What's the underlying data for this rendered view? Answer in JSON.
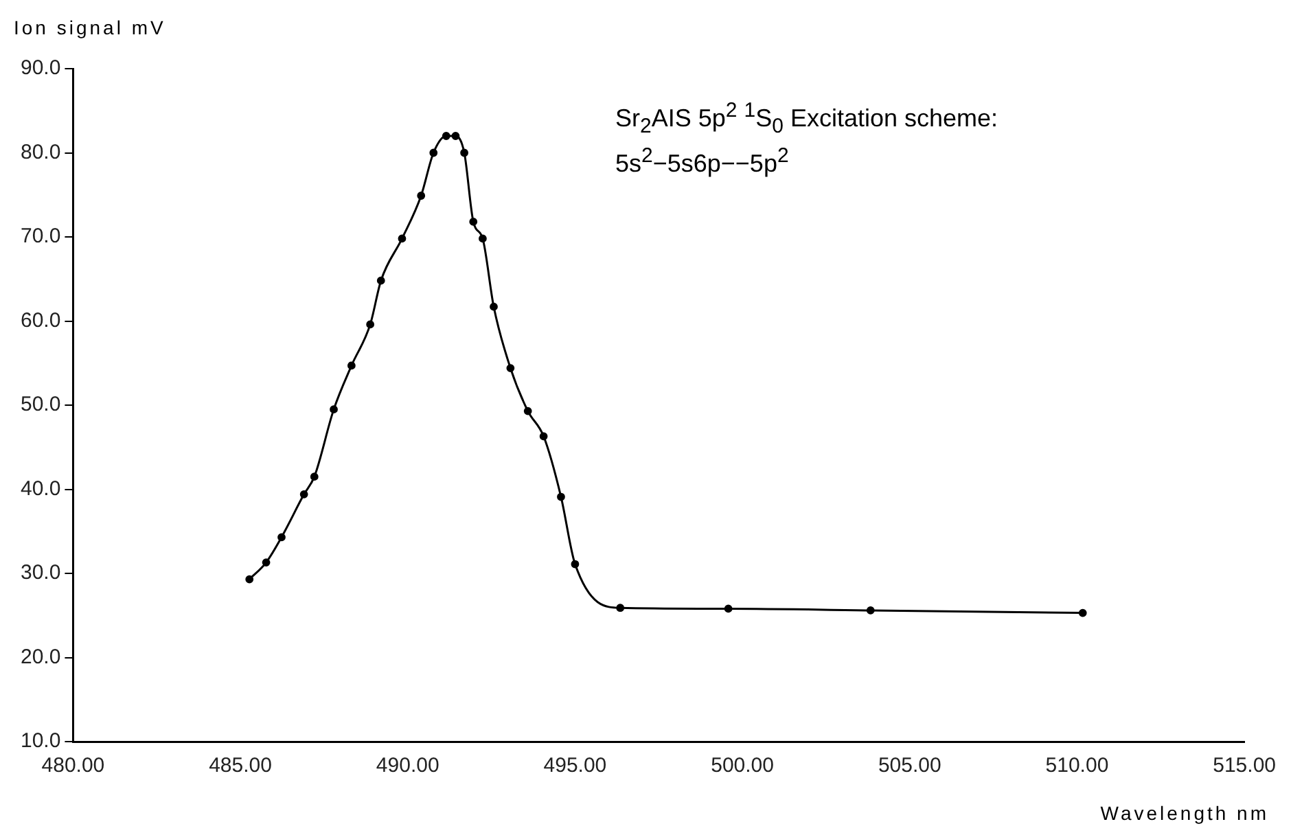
{
  "chart_data": {
    "type": "line",
    "xlabel": "Wavelength nm",
    "ylabel": "Ion signal mV",
    "annotations": [
      "Sr$_{2}$AIS 5p$^{2}$ $^{1}$S$_{0}$ Excitation scheme:",
      "5s$^{2}$−5s6p−−5p$^{2}$"
    ],
    "series": [
      {
        "color": "#000000",
        "x": [
          485.27,
          485.77,
          486.23,
          486.9,
          487.21,
          487.79,
          488.32,
          488.88,
          489.2,
          489.83,
          490.4,
          490.77,
          491.15,
          491.43,
          491.69,
          491.96,
          492.24,
          492.57,
          493.07,
          493.59,
          494.06,
          494.58,
          495.0,
          496.35,
          499.58,
          503.83,
          510.17
        ],
        "values": [
          29.3,
          31.3,
          34.3,
          39.4,
          41.5,
          49.5,
          54.7,
          59.6,
          64.8,
          69.8,
          74.9,
          80.0,
          82.0,
          82.0,
          80.0,
          71.8,
          69.8,
          61.7,
          54.4,
          49.3,
          46.3,
          39.1,
          31.1,
          25.9,
          25.8,
          25.6,
          25.3
        ]
      }
    ],
    "xlim": [
      480,
      515
    ],
    "xticks": [
      {
        "value": 480,
        "label": "480.00"
      },
      {
        "value": 485,
        "label": "485.00"
      },
      {
        "value": 490,
        "label": "490.00"
      },
      {
        "value": 495,
        "label": "495.00"
      },
      {
        "value": 500,
        "label": "500.00"
      },
      {
        "value": 505,
        "label": "505.00"
      },
      {
        "value": 510,
        "label": "510.00"
      },
      {
        "value": 515,
        "label": "515.00"
      }
    ],
    "ylim": [
      10,
      90
    ],
    "yticks": [
      {
        "value": 10,
        "label": "10.0"
      },
      {
        "value": 20,
        "label": "20.0"
      },
      {
        "value": 30,
        "label": "30.0"
      },
      {
        "value": 40,
        "label": "40.0"
      },
      {
        "value": 50,
        "label": "50.0"
      },
      {
        "value": 60,
        "label": "60.0"
      },
      {
        "value": 70,
        "label": "70.0"
      },
      {
        "value": 80,
        "label": "80.0"
      },
      {
        "value": 90,
        "label": "90.0"
      }
    ],
    "grid": false,
    "legend": false,
    "marker": "circle",
    "line_style": "solid"
  }
}
